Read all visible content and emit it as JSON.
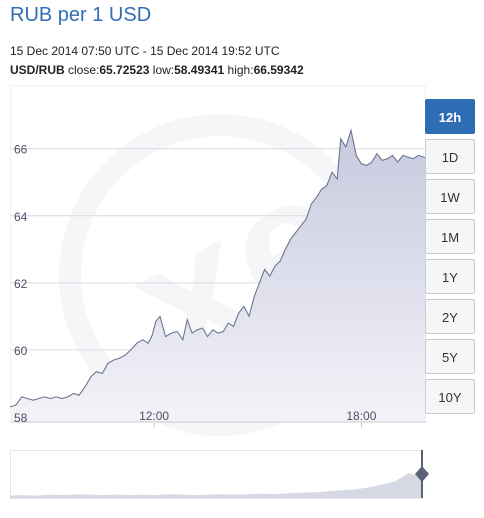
{
  "header": {
    "title": "RUB per 1 USD",
    "date_range": "15 Dec 2014 07:50 UTC - 15 Dec 2014 19:52 UTC",
    "pair": "USD/RUB",
    "close_label": "close:",
    "close_value": "65.72523",
    "low_label": "low:",
    "low_value": "58.49341",
    "high_label": "high:",
    "high_value": "66.59342"
  },
  "range_buttons": [
    {
      "label": "12h",
      "active": true
    },
    {
      "label": "1D",
      "active": false
    },
    {
      "label": "1W",
      "active": false
    },
    {
      "label": "1M",
      "active": false
    },
    {
      "label": "1Y",
      "active": false
    },
    {
      "label": "2Y",
      "active": false
    },
    {
      "label": "5Y",
      "active": false
    },
    {
      "label": "10Y",
      "active": false
    }
  ],
  "colors": {
    "title": "#2f6fb3",
    "line": "#6d7590",
    "fill_top": "#c7c9de",
    "fill_bottom": "#f3f3f8",
    "active_button": "#2e6db4",
    "navigator_fill": "#d6d8e4",
    "handle": "#5a6275"
  },
  "chart_data": {
    "type": "area",
    "x_unit": "hour UTC",
    "y_ticks": [
      58,
      60,
      62,
      64,
      66
    ],
    "x_ticks": [
      {
        "label": "12:00",
        "x": 12.0
      },
      {
        "label": "18:00",
        "x": 18.0
      }
    ],
    "xlim": [
      7.83,
      19.87
    ],
    "ylim": [
      57.85,
      67.9
    ],
    "grid": true,
    "series": [
      {
        "x": [
          7.83,
          8.0,
          8.17,
          8.33,
          8.5,
          8.67,
          8.83,
          9.0,
          9.17,
          9.33,
          9.5,
          9.67,
          9.83,
          10.0,
          10.17,
          10.33,
          10.5,
          10.67,
          10.83,
          11.0,
          11.17,
          11.33,
          11.5,
          11.67,
          11.83,
          11.95,
          12.05,
          12.17,
          12.33,
          12.5,
          12.67,
          12.83,
          12.96,
          13.1,
          13.25,
          13.4,
          13.55,
          13.7,
          13.85,
          14.0,
          14.15,
          14.3,
          14.45,
          14.6,
          14.75,
          14.9,
          15.05,
          15.2,
          15.35,
          15.5,
          15.65,
          15.8,
          15.95,
          16.1,
          16.25,
          16.4,
          16.55,
          16.7,
          16.85,
          17.0,
          17.15,
          17.3,
          17.4,
          17.55,
          17.7,
          17.85,
          18.0,
          18.15,
          18.3,
          18.45,
          18.6,
          18.75,
          18.9,
          19.05,
          19.2,
          19.35,
          19.5,
          19.65,
          19.8,
          19.87
        ],
        "values": [
          58.3,
          58.35,
          58.6,
          58.55,
          58.5,
          58.55,
          58.6,
          58.55,
          58.6,
          58.55,
          58.6,
          58.7,
          58.65,
          58.9,
          59.2,
          59.35,
          59.3,
          59.6,
          59.7,
          59.75,
          59.85,
          60.0,
          60.2,
          60.3,
          60.2,
          60.45,
          60.85,
          61.0,
          60.4,
          60.5,
          60.55,
          60.3,
          60.9,
          60.5,
          60.6,
          60.65,
          60.4,
          60.6,
          60.5,
          60.55,
          60.8,
          60.7,
          61.1,
          61.3,
          61.0,
          61.6,
          62.0,
          62.4,
          62.2,
          62.5,
          62.65,
          63.0,
          63.3,
          63.5,
          63.7,
          63.9,
          64.35,
          64.55,
          64.8,
          64.9,
          65.3,
          65.1,
          66.3,
          66.05,
          66.55,
          65.8,
          65.55,
          65.5,
          65.6,
          65.85,
          65.65,
          65.7,
          65.8,
          65.6,
          65.8,
          65.75,
          65.7,
          65.8,
          65.75,
          65.72523
        ]
      }
    ]
  },
  "navigator_data": {
    "values": [
      0.05,
      0.06,
      0.05,
      0.07,
      0.06,
      0.08,
      0.07,
      0.06,
      0.07,
      0.06,
      0.07,
      0.06,
      0.08,
      0.07,
      0.06,
      0.07,
      0.08,
      0.07,
      0.08,
      0.09,
      0.08,
      0.1,
      0.11,
      0.12,
      0.14,
      0.16,
      0.18,
      0.22,
      0.28,
      0.35,
      0.52,
      0.44
    ]
  }
}
